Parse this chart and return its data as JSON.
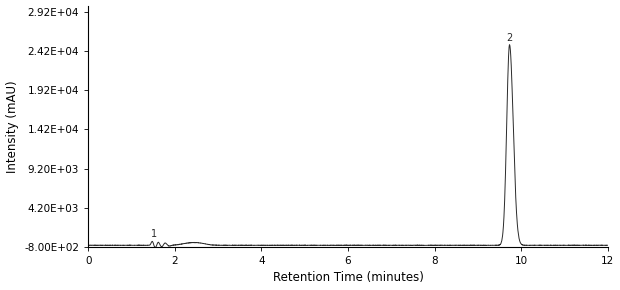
{
  "xlabel": "Retention Time (minutes)",
  "ylabel": "Intensity (mAU)",
  "xlim": [
    0,
    12
  ],
  "ylim": [
    -800,
    30000
  ],
  "yticks": [
    -800,
    4200,
    9200,
    14200,
    19200,
    24200,
    29200
  ],
  "ytick_labels": [
    "-8.00E+02",
    "4.20E+03",
    "9.20E+03",
    "1.42E+04",
    "1.92E+04",
    "2.42E+04",
    "2.92E+04"
  ],
  "xticks": [
    0,
    2,
    4,
    6,
    8,
    10,
    12
  ],
  "line_color": "#2a2a2a",
  "background_color": "#ffffff",
  "peak1_label": "1",
  "peak1_x": 1.52,
  "peak1_y": 200,
  "peak2_label": "2",
  "peak2_x": 9.73,
  "peak2_y": 25200,
  "baseline": -600
}
